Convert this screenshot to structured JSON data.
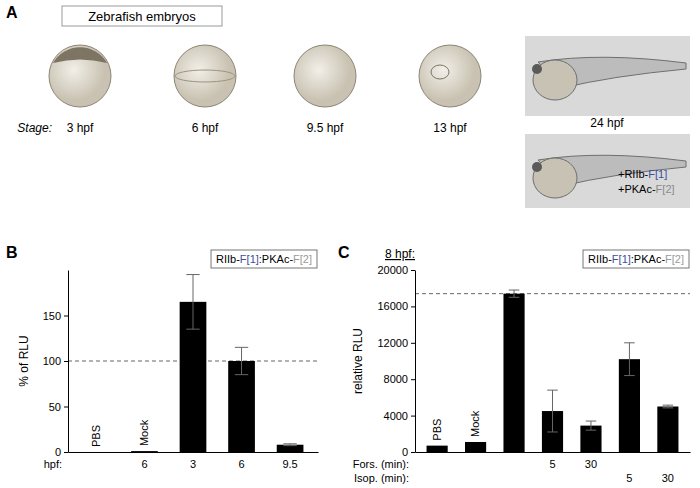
{
  "panel_a": {
    "label": "A",
    "title": "Zebrafish embryos",
    "stage_label": "Stage:",
    "stages": [
      "3 hpf",
      "6 hpf",
      "9.5 hpf",
      "13 hpf",
      "24 hpf"
    ],
    "injection_labels": [
      [
        "+RIIb-",
        "F[1]"
      ],
      [
        "+PKAc-",
        "F[2]"
      ]
    ]
  },
  "chart_data": [
    {
      "type": "bar",
      "panel_label": "B",
      "y_label": "% of RLU",
      "annotation_parts": [
        "RIIb-",
        "F[1]",
        ":PKAc-",
        "F[2]"
      ],
      "categories": [
        "PBS",
        "Mock",
        null,
        null,
        null
      ],
      "x_rows": [
        {
          "label": "hpf:",
          "labels": [
            null,
            "6",
            "3",
            "6",
            "9.5"
          ]
        }
      ],
      "values": [
        0,
        1,
        165,
        100,
        8
      ],
      "errors": [
        null,
        null,
        30,
        15,
        1
      ],
      "reference_line": 100,
      "color": "#000000",
      "ylim": [
        0,
        200
      ],
      "yticks": [
        0,
        50,
        100,
        150
      ]
    },
    {
      "type": "bar",
      "panel_label": "C",
      "title": "8 hpf:",
      "y_label": "relative RLU",
      "annotation_parts": [
        "RIIb-",
        "F[1]",
        ":PKAc-",
        "F[2]"
      ],
      "categories": [
        "PBS",
        "Mock",
        null,
        null,
        null,
        null,
        null
      ],
      "x_rows": [
        {
          "label": "Fors. (min):",
          "labels": [
            null,
            null,
            null,
            "5",
            "30",
            null,
            null
          ]
        },
        {
          "label": "Isop. (min):",
          "labels": [
            null,
            null,
            null,
            null,
            null,
            "5",
            "30"
          ]
        }
      ],
      "values": [
        700,
        1100,
        17400,
        4500,
        2900,
        10200,
        5000
      ],
      "errors": [
        null,
        null,
        400,
        2300,
        500,
        1800,
        150
      ],
      "reference_line": 17400,
      "color": "#000000",
      "ylim": [
        0,
        20000
      ],
      "yticks": [
        0,
        4000,
        8000,
        12000,
        16000,
        20000
      ]
    }
  ]
}
